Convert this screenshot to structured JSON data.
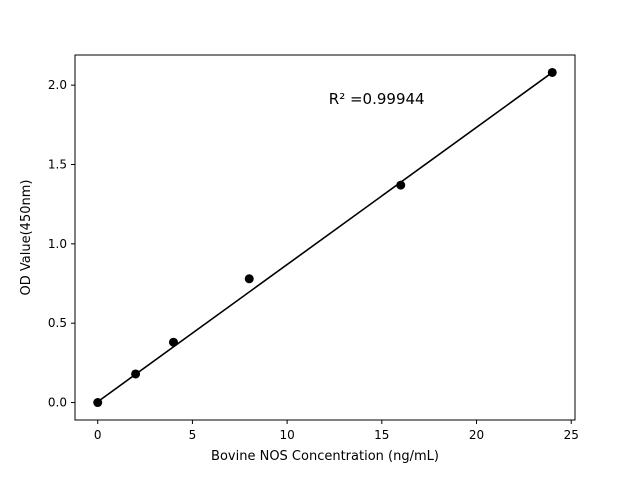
{
  "figure": {
    "background": "#ffffff"
  },
  "chart_data": {
    "type": "scatter",
    "title": "",
    "xlabel": "Bovine NOS Concentration (ng/mL)",
    "ylabel": "OD Value(450nm)",
    "x": [
      0,
      2,
      4,
      8,
      16,
      24
    ],
    "y": [
      0.0,
      0.18,
      0.38,
      0.78,
      1.37,
      2.08
    ],
    "fit_line": {
      "x": [
        0,
        24
      ],
      "y": [
        0.005,
        2.08
      ]
    },
    "annotation": {
      "text": "R² =0.99944",
      "x": 12.2,
      "y": 1.88
    },
    "xlim": [
      -1.2,
      25.2
    ],
    "ylim": [
      -0.11,
      2.19
    ],
    "xticks": [
      0,
      5,
      10,
      15,
      20,
      25
    ],
    "xticklabels": [
      "0",
      "5",
      "10",
      "15",
      "20",
      "25"
    ],
    "yticks": [
      0.0,
      0.5,
      1.0,
      1.5,
      2.0
    ],
    "yticklabels": [
      "0.0",
      "0.5",
      "1.0",
      "1.5",
      "2.0"
    ],
    "grid": false,
    "legend": null,
    "marker_color": "#000000",
    "line_color": "#000000",
    "axis_color": "#000000"
  }
}
